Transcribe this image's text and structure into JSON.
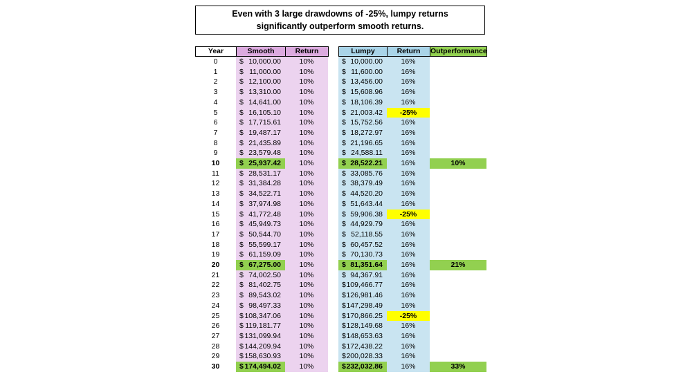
{
  "title": "Even with 3 large drawdowns of -25%, lumpy returns significantly outperform smooth returns.",
  "currency": "$",
  "left_table": {
    "headers": [
      "Year",
      "Smooth",
      "Return"
    ]
  },
  "right_table": {
    "headers": [
      "Lumpy",
      "Return",
      "Outperformance"
    ]
  },
  "rows": [
    [
      "0",
      "10,000.00",
      "10%",
      "10,000.00",
      "16%",
      null
    ],
    [
      "1",
      "11,000.00",
      "10%",
      "11,600.00",
      "16%",
      null
    ],
    [
      "2",
      "12,100.00",
      "10%",
      "13,456.00",
      "16%",
      null
    ],
    [
      "3",
      "13,310.00",
      "10%",
      "15,608.96",
      "16%",
      null
    ],
    [
      "4",
      "14,641.00",
      "10%",
      "18,106.39",
      "16%",
      null
    ],
    [
      "5",
      "16,105.10",
      "10%",
      "21,003.42",
      "-25%",
      null
    ],
    [
      "6",
      "17,715.61",
      "10%",
      "15,752.56",
      "16%",
      null
    ],
    [
      "7",
      "19,487.17",
      "10%",
      "18,272.97",
      "16%",
      null
    ],
    [
      "8",
      "21,435.89",
      "10%",
      "21,196.65",
      "16%",
      null
    ],
    [
      "9",
      "23,579.48",
      "10%",
      "24,588.11",
      "16%",
      null
    ],
    [
      "10",
      "25,937.42",
      "10%",
      "28,522.21",
      "16%",
      "10%"
    ],
    [
      "11",
      "28,531.17",
      "10%",
      "33,085.76",
      "16%",
      null
    ],
    [
      "12",
      "31,384.28",
      "10%",
      "38,379.49",
      "16%",
      null
    ],
    [
      "13",
      "34,522.71",
      "10%",
      "44,520.20",
      "16%",
      null
    ],
    [
      "14",
      "37,974.98",
      "10%",
      "51,643.44",
      "16%",
      null
    ],
    [
      "15",
      "41,772.48",
      "10%",
      "59,906.38",
      "-25%",
      null
    ],
    [
      "16",
      "45,949.73",
      "10%",
      "44,929.79",
      "16%",
      null
    ],
    [
      "17",
      "50,544.70",
      "10%",
      "52,118.55",
      "16%",
      null
    ],
    [
      "18",
      "55,599.17",
      "10%",
      "60,457.52",
      "16%",
      null
    ],
    [
      "19",
      "61,159.09",
      "10%",
      "70,130.73",
      "16%",
      null
    ],
    [
      "20",
      "67,275.00",
      "10%",
      "81,351.64",
      "16%",
      "21%"
    ],
    [
      "21",
      "74,002.50",
      "10%",
      "94,367.91",
      "16%",
      null
    ],
    [
      "22",
      "81,402.75",
      "10%",
      "109,466.77",
      "16%",
      null
    ],
    [
      "23",
      "89,543.02",
      "10%",
      "126,981.46",
      "16%",
      null
    ],
    [
      "24",
      "98,497.33",
      "10%",
      "147,298.49",
      "16%",
      null
    ],
    [
      "25",
      "108,347.06",
      "10%",
      "170,866.25",
      "-25%",
      null
    ],
    [
      "26",
      "119,181.77",
      "10%",
      "128,149.68",
      "16%",
      null
    ],
    [
      "27",
      "131,099.94",
      "10%",
      "148,653.63",
      "16%",
      null
    ],
    [
      "28",
      "144,209.94",
      "10%",
      "172,438.22",
      "16%",
      null
    ],
    [
      "29",
      "158,630.93",
      "10%",
      "200,028.33",
      "16%",
      null
    ],
    [
      "30",
      "174,494.02",
      "10%",
      "232,032.86",
      "16%",
      "33%"
    ]
  ]
}
